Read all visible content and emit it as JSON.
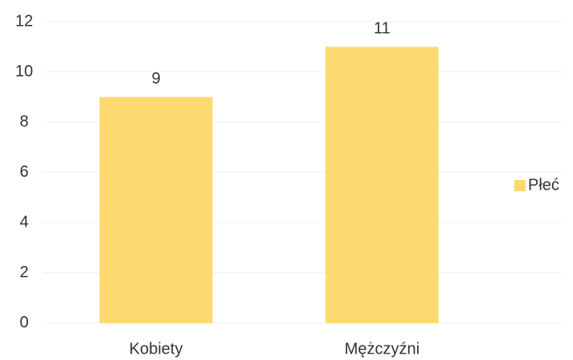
{
  "chart_data": {
    "type": "bar",
    "categories": [
      "Kobiety",
      "Mężczyźni"
    ],
    "series": [
      {
        "name": "Płeć",
        "color": "#fdd96f",
        "values": [
          9,
          11
        ]
      }
    ],
    "ylim": [
      0,
      12
    ],
    "yticks": [
      0,
      2,
      4,
      6,
      8,
      10,
      12
    ],
    "grid": true,
    "legend": "right"
  }
}
